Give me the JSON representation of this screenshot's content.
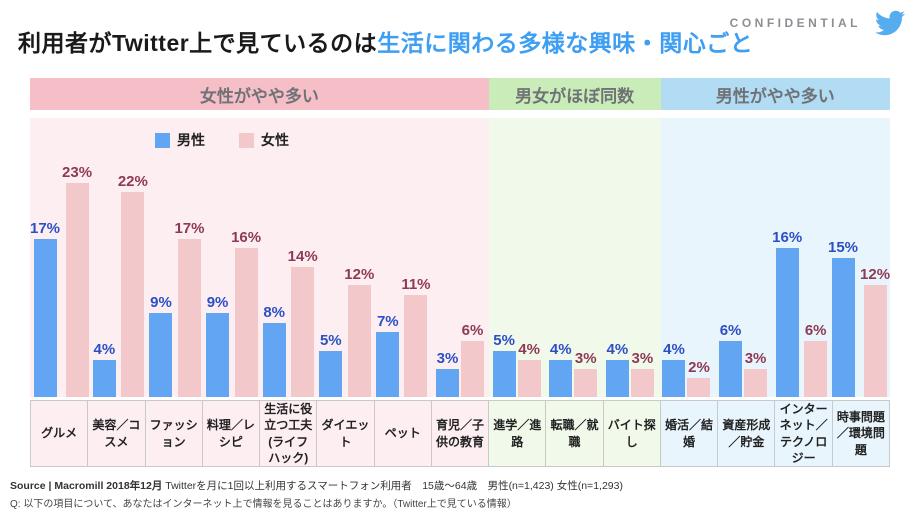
{
  "header": {
    "confidential": "CONFIDENTIAL",
    "title_black": "利用者がTwitter上で見ているのは",
    "title_blue": "生活に関わる多様な興味・関心ごと",
    "title_accent_color": "#3d9ef2",
    "twitter_bird_color": "#55acee"
  },
  "sections": [
    {
      "label": "女性がやや多い",
      "categories_count": 8,
      "header_color": "#f6bfc8",
      "plot_bg_color": "#fdeef2"
    },
    {
      "label": "男女がほぼ同数",
      "categories_count": 3,
      "header_color": "#c9ecb8",
      "plot_bg_color": "#f1f9eb"
    },
    {
      "label": "男性がやや多い",
      "categories_count": 4,
      "header_color": "#b2dcf4",
      "plot_bg_color": "#e9f5fc"
    }
  ],
  "legend": {
    "male_label": "男性",
    "female_label": "女性",
    "male_color": "#62a5f2",
    "female_color": "#f2c8ca"
  },
  "chart_data": {
    "type": "bar",
    "title": "利用者がTwitter上で見ているのは生活に関わる多様な興味・関心ごと",
    "unit": "%",
    "ylim": [
      0,
      25
    ],
    "grid": false,
    "legend_position": "top-left-inside",
    "categories": [
      "グルメ",
      "美容／コスメ",
      "ファッション",
      "料理／レシピ",
      "生活に役立つ工夫(ライフハック)",
      "ダイエット",
      "ペット",
      "育児／子供の教育",
      "進学／進路",
      "転職／就職",
      "バイト探し",
      "婚活／結婚",
      "資産形成／貯金",
      "インターネット／テクノロジー",
      "時事問題／環境問題"
    ],
    "section_of_category": [
      0,
      0,
      0,
      0,
      0,
      0,
      0,
      0,
      1,
      1,
      1,
      2,
      2,
      2,
      2
    ],
    "series": [
      {
        "name": "男性",
        "color": "#62a5f2",
        "label_color": "#2b50c5",
        "values": [
          17,
          4,
          9,
          9,
          8,
          5,
          7,
          3,
          5,
          4,
          4,
          4,
          6,
          16,
          15
        ]
      },
      {
        "name": "女性",
        "color": "#f2c8ca",
        "label_color": "#8e3a56",
        "values": [
          23,
          22,
          17,
          16,
          14,
          12,
          11,
          6,
          4,
          3,
          3,
          2,
          3,
          6,
          12
        ]
      }
    ]
  },
  "footer": {
    "source_bold": "Source | Macromill 2018年12月",
    "source_rest": " Twitterを月に1回以上利用するスマートフォン利用者　15歳〜64歳　男性(n=1,423) 女性(n=1,293)",
    "question_line": "Q: 以下の項目について、あなたはインターネット上で情報を見ることはありますか。（Twitter上で見ている情報）"
  }
}
